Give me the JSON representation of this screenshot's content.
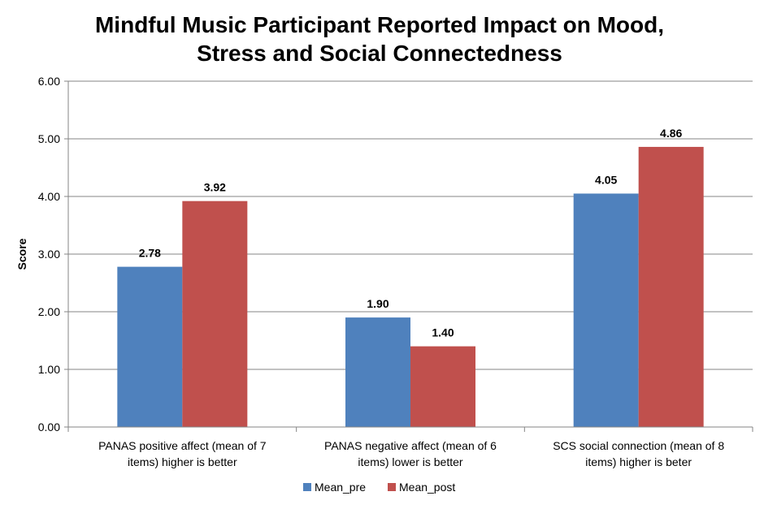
{
  "chart_data": {
    "type": "bar",
    "title": [
      "Mindful Music Participant Reported Impact on Mood,",
      "Stress and Social Connectedness"
    ],
    "ylabel": "Score",
    "xlabel": "",
    "ylim": [
      0,
      6
    ],
    "yticks": [
      "0.00",
      "1.00",
      "2.00",
      "3.00",
      "4.00",
      "5.00",
      "6.00"
    ],
    "grid": true,
    "legend_position": "bottom",
    "categories": [
      [
        "PANAS positive affect (mean of 7",
        "items) higher is better"
      ],
      [
        "PANAS negative affect (mean of 6",
        "items) lower is better"
      ],
      [
        "SCS social connection (mean of 8",
        "items) higher is beter"
      ]
    ],
    "series": [
      {
        "name": "Mean_pre",
        "color": "#4F81BD",
        "values": [
          2.78,
          1.9,
          4.05
        ],
        "labels": [
          "2.78",
          "1.90",
          "4.05"
        ]
      },
      {
        "name": "Mean_post",
        "color": "#C0504D",
        "values": [
          3.92,
          1.4,
          4.86
        ],
        "labels": [
          "3.92",
          "1.40",
          "4.86"
        ]
      }
    ]
  }
}
